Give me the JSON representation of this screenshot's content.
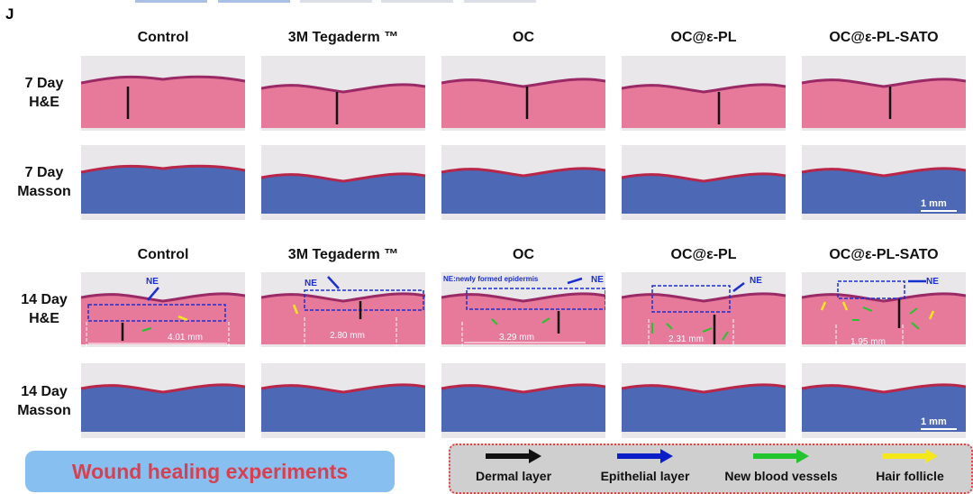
{
  "panel_letter": "J",
  "columns": [
    "Control",
    "3M Tegaderm ™",
    "OC",
    "OC@ε-PL",
    "OC@ε-PL-SATO"
  ],
  "rows": [
    {
      "day": "7 Day",
      "stain": "H&E"
    },
    {
      "day": "7 Day",
      "stain": "Masson"
    },
    {
      "day": "14 Day",
      "stain": "H&E"
    },
    {
      "day": "14 Day",
      "stain": "Masson"
    }
  ],
  "annotations": {
    "ne": "NE",
    "ne_definition": "NE:newly formed epidermis",
    "wound_widths": [
      "4.01 mm",
      "2.80 mm",
      "3.29 mm",
      "2.31 mm",
      "1.95 mm"
    ],
    "scale_bar": "1 mm"
  },
  "title": "Wound healing experiments",
  "legend": [
    {
      "label": "Dermal layer",
      "color": "#111111"
    },
    {
      "label": "Epithelial layer",
      "color": "#0a1fc8"
    },
    {
      "label": "New blood vessels",
      "color": "#22c52e"
    },
    {
      "label": "Hair follicle",
      "color": "#f5e81a"
    }
  ],
  "colors": {
    "he_tissue": "#e7799a",
    "he_edge": "#9a2a66",
    "masson_tissue": "#4d68b4",
    "masson_edge": "#b8264a",
    "background": "#e9e7ea",
    "title_bg": "#86bff0",
    "title_text": "#d8404f"
  }
}
